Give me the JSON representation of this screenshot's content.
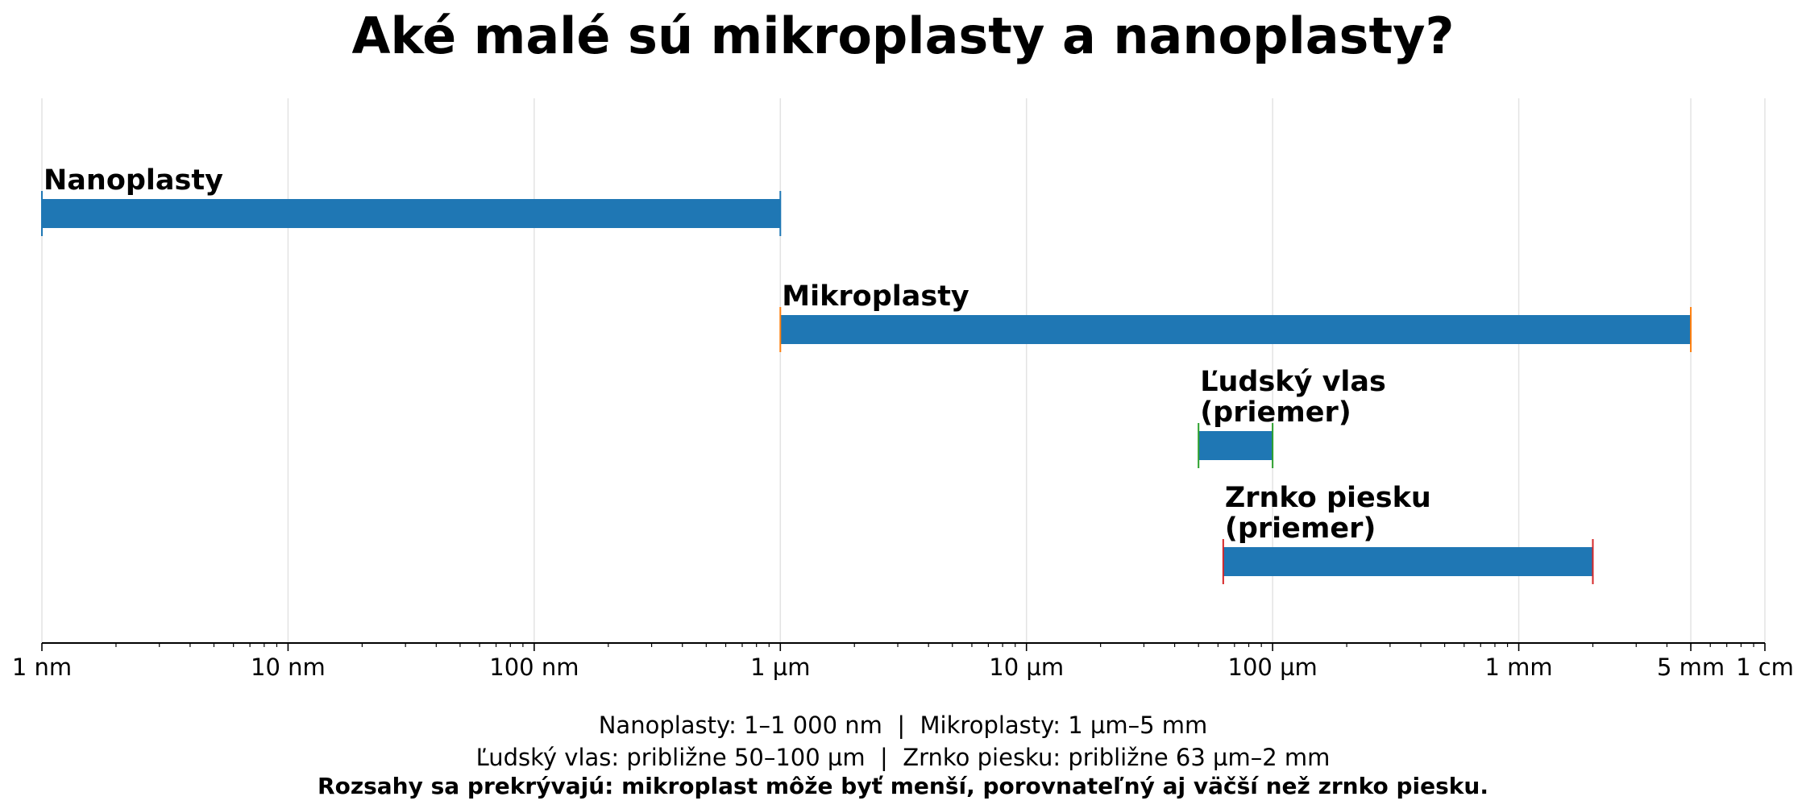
{
  "chart_data": {
    "type": "range-bar",
    "title": "Aké malé sú mikroplasty a nanoplasty?",
    "xlabel": "",
    "ylabel": "",
    "x_scale": "log",
    "x_unit": "nm",
    "xlim": [
      1,
      10000000
    ],
    "grid": true,
    "x_ticks": [
      {
        "value": 1,
        "label": "1 nm"
      },
      {
        "value": 10,
        "label": "10 nm"
      },
      {
        "value": 100,
        "label": "100 nm"
      },
      {
        "value": 1000,
        "label": "1 µm"
      },
      {
        "value": 10000,
        "label": "10 µm"
      },
      {
        "value": 100000,
        "label": "100 µm"
      },
      {
        "value": 1000000,
        "label": "1 mm"
      },
      {
        "value": 5000000,
        "label": "5 mm"
      },
      {
        "value": 10000000,
        "label": "1 cm"
      }
    ],
    "ranges": [
      {
        "label": "Nanoplasty",
        "start": 1,
        "end": 1000,
        "edge_color": "#1f77b4"
      },
      {
        "label": "Mikroplasty",
        "start": 1000,
        "end": 5000000,
        "edge_color": "#ff7f0e"
      },
      {
        "label": "Ľudský vlas\n(priemer)",
        "start": 50000,
        "end": 100000,
        "edge_color": "#2ca02c"
      },
      {
        "label": "Zrnko piesku\n(priemer)",
        "start": 63000,
        "end": 2000000,
        "edge_color": "#d62728"
      }
    ],
    "bar_color": "#1f77b4",
    "notes": [
      "Nanoplasty: 1–1 000 nm  |  Mikroplasty: 1 µm–5 mm",
      "Ľudský vlas: približne 50–100 µm  |  Zrnko piesku: približne 63 µm–2 mm",
      "Rozsahy sa prekrývajú: mikroplast môže byť menší, porovnateľný aj väčší než zrnko piesku."
    ]
  }
}
